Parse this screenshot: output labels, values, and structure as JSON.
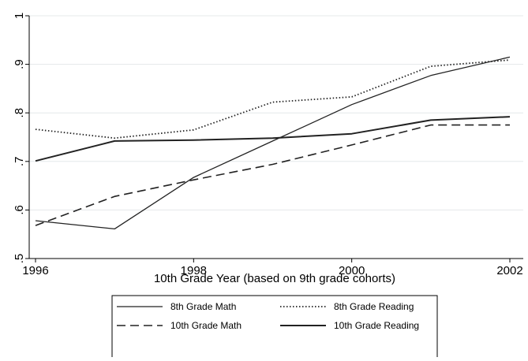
{
  "chart_data": {
    "type": "line",
    "xlabel": "10th Grade Year (based on 9th grade cohorts)",
    "ylabel": "",
    "x": [
      1996,
      1997,
      1998,
      1999,
      2000,
      2001,
      2002
    ],
    "xticks": [
      1996,
      1998,
      2000,
      2002
    ],
    "xtick_labels": [
      "1996",
      "1998",
      "2000",
      "2002"
    ],
    "xlim": [
      1996,
      2002
    ],
    "yticks": [
      0.5,
      0.6,
      0.7,
      0.8,
      0.9,
      1.0
    ],
    "ytick_labels": [
      ".5",
      ".6",
      ".7",
      ".8",
      ".9",
      "1"
    ],
    "ylim": [
      0.5,
      1.0
    ],
    "grid": "horizontal",
    "legend_position": "bottom",
    "series": [
      {
        "name": "8th Grade Math",
        "style": "solid-thin",
        "color": "#222222",
        "values": [
          0.578,
          0.561,
          0.667,
          0.742,
          0.817,
          0.877,
          0.915
        ]
      },
      {
        "name": "8th Grade Reading",
        "style": "dotted",
        "color": "#222222",
        "values": [
          0.766,
          0.748,
          0.765,
          0.822,
          0.833,
          0.896,
          0.909
        ]
      },
      {
        "name": "10th Grade Math",
        "style": "dashed",
        "color": "#222222",
        "values": [
          0.568,
          0.628,
          0.662,
          0.694,
          0.734,
          0.775,
          0.775
        ]
      },
      {
        "name": "10th Grade Reading",
        "style": "solid-thick",
        "color": "#222222",
        "values": [
          0.701,
          0.742,
          0.744,
          0.748,
          0.757,
          0.785,
          0.792
        ]
      }
    ]
  }
}
